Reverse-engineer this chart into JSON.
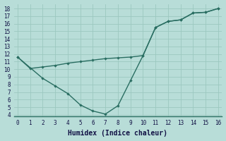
{
  "line1_x": [
    0,
    1,
    2,
    3,
    4,
    5,
    6,
    7,
    8,
    9,
    10,
    11,
    12,
    13,
    14,
    15,
    16
  ],
  "line1_y": [
    11.6,
    10.1,
    10.3,
    10.5,
    10.8,
    11.0,
    11.2,
    11.4,
    11.5,
    11.6,
    11.8,
    15.5,
    16.3,
    16.5,
    17.4,
    17.5,
    18.0
  ],
  "line2_x": [
    0,
    2,
    3,
    4,
    5,
    6,
    7,
    8,
    9,
    10,
    11,
    12,
    13,
    14,
    15,
    16
  ],
  "line2_y": [
    11.6,
    8.8,
    7.8,
    6.8,
    5.3,
    4.5,
    4.1,
    5.2,
    8.5,
    11.8,
    15.5,
    16.3,
    16.5,
    17.4,
    17.5,
    18.0
  ],
  "line_color": "#2a6e62",
  "bg_color": "#b8ddd8",
  "grid_color": "#9cc8c0",
  "xlabel": "Humidex (Indice chaleur)",
  "xlim": [
    -0.3,
    16.3
  ],
  "ylim": [
    3.8,
    18.6
  ],
  "yticks": [
    4,
    5,
    6,
    7,
    8,
    9,
    10,
    11,
    12,
    13,
    14,
    15,
    16,
    17,
    18
  ],
  "xticks": [
    0,
    1,
    2,
    3,
    4,
    5,
    6,
    7,
    8,
    9,
    10,
    11,
    12,
    13,
    14,
    15,
    16
  ],
  "tick_fontsize": 5.5,
  "xlabel_fontsize": 7
}
